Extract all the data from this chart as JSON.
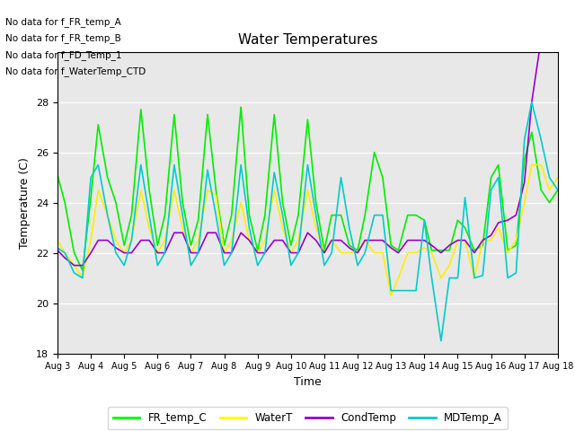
{
  "title": "Water Temperatures",
  "xlabel": "Time",
  "ylabel": "Temperature (C)",
  "ylim": [
    18,
    30
  ],
  "xlim_start": 0,
  "xlim_end": 15,
  "xtick_labels": [
    "Aug 3",
    "Aug 4",
    "Aug 5",
    "Aug 6",
    "Aug 7",
    "Aug 8",
    "Aug 9",
    "Aug 10",
    "Aug 11",
    "Aug 12",
    "Aug 13",
    "Aug 14",
    "Aug 15",
    "Aug 16",
    "Aug 17",
    "Aug 18"
  ],
  "ytick_values": [
    18,
    20,
    22,
    24,
    26,
    28
  ],
  "ytick_labels": [
    "18",
    "20",
    "22",
    "24",
    "26",
    "28"
  ],
  "bg_color": "#e8e8e8",
  "fig_bg_color": "#ffffff",
  "no_data_lines": [
    "No data for f_FR_temp_A",
    "No data for f_FR_temp_B",
    "No data for f_FD_Temp_1",
    "No data for f_WaterTemp_CTD"
  ],
  "legend_entries": [
    {
      "label": "FR_temp_C",
      "color": "#00ff00"
    },
    {
      "label": "WaterT",
      "color": "#ffff00"
    },
    {
      "label": "CondTemp",
      "color": "#9900cc"
    },
    {
      "label": "MDTemp_A",
      "color": "#00cccc"
    }
  ],
  "series": {
    "FR_temp_C": {
      "color": "#00ee00",
      "x": [
        0,
        0.22,
        0.5,
        0.75,
        1.0,
        1.22,
        1.5,
        1.75,
        2.0,
        2.22,
        2.5,
        2.75,
        3.0,
        3.22,
        3.5,
        3.75,
        4.0,
        4.22,
        4.5,
        4.75,
        5.0,
        5.22,
        5.5,
        5.75,
        6.0,
        6.22,
        6.5,
        6.75,
        7.0,
        7.22,
        7.5,
        7.75,
        8.0,
        8.22,
        8.5,
        8.75,
        9.0,
        9.22,
        9.5,
        9.75,
        10.0,
        10.22,
        10.5,
        10.75,
        11.0,
        11.22,
        11.5,
        11.75,
        12.0,
        12.22,
        12.5,
        12.75,
        13.0,
        13.22,
        13.5,
        13.75,
        14.0,
        14.22,
        14.5,
        14.75,
        15.0
      ],
      "y": [
        25.1,
        24.0,
        22.0,
        21.3,
        24.2,
        27.1,
        25.0,
        24.0,
        22.3,
        23.5,
        27.7,
        24.5,
        22.3,
        23.5,
        27.5,
        24.0,
        22.3,
        23.3,
        27.5,
        24.5,
        22.3,
        23.5,
        27.8,
        23.5,
        22.1,
        23.5,
        27.5,
        24.0,
        22.3,
        23.5,
        27.3,
        24.0,
        22.1,
        23.5,
        23.5,
        22.3,
        22.1,
        23.5,
        26.0,
        25.0,
        22.3,
        22.1,
        23.5,
        23.5,
        23.3,
        22.1,
        22.1,
        22.1,
        23.3,
        23.0,
        22.1,
        22.3,
        25.0,
        25.5,
        22.1,
        22.3,
        25.7,
        26.8,
        24.5,
        24.0,
        24.5
      ]
    },
    "WaterT": {
      "color": "#ffee00",
      "x": [
        0,
        0.22,
        0.5,
        0.75,
        1.0,
        1.22,
        1.5,
        1.75,
        2.0,
        2.22,
        2.5,
        2.75,
        3.0,
        3.22,
        3.5,
        3.75,
        4.0,
        4.22,
        4.5,
        4.75,
        5.0,
        5.22,
        5.5,
        5.75,
        6.0,
        6.22,
        6.5,
        6.75,
        7.0,
        7.22,
        7.5,
        7.75,
        8.0,
        8.22,
        8.5,
        8.75,
        9.0,
        9.22,
        9.5,
        9.75,
        10.0,
        10.22,
        10.5,
        10.75,
        11.0,
        11.22,
        11.5,
        11.75,
        12.0,
        12.22,
        12.5,
        12.75,
        13.0,
        13.22,
        13.5,
        13.75,
        14.0,
        14.22,
        14.5,
        14.75,
        15.0
      ],
      "y": [
        22.5,
        22.0,
        21.5,
        21.0,
        22.5,
        24.5,
        23.5,
        22.5,
        22.0,
        22.5,
        24.5,
        23.0,
        22.0,
        22.5,
        24.5,
        23.0,
        22.0,
        22.5,
        24.5,
        24.3,
        22.0,
        22.5,
        24.0,
        22.5,
        22.0,
        22.5,
        24.5,
        23.0,
        22.0,
        22.5,
        24.5,
        23.0,
        22.0,
        22.5,
        22.0,
        22.0,
        22.0,
        22.5,
        22.0,
        22.0,
        20.3,
        21.0,
        22.0,
        22.0,
        22.2,
        22.0,
        21.0,
        21.5,
        22.5,
        22.5,
        21.0,
        22.5,
        22.5,
        23.0,
        22.0,
        22.5,
        24.0,
        25.5,
        25.5,
        24.5,
        25.0
      ]
    },
    "CondTemp": {
      "color": "#9900cc",
      "x": [
        0,
        0.22,
        0.5,
        0.75,
        1.0,
        1.22,
        1.5,
        1.75,
        2.0,
        2.22,
        2.5,
        2.75,
        3.0,
        3.22,
        3.5,
        3.75,
        4.0,
        4.22,
        4.5,
        4.75,
        5.0,
        5.22,
        5.5,
        5.75,
        6.0,
        6.22,
        6.5,
        6.75,
        7.0,
        7.22,
        7.5,
        7.75,
        8.0,
        8.22,
        8.5,
        8.75,
        9.0,
        9.22,
        9.5,
        9.75,
        10.0,
        10.22,
        10.5,
        10.75,
        11.0,
        11.22,
        11.5,
        11.75,
        12.0,
        12.22,
        12.5,
        12.75,
        13.0,
        13.22,
        13.5,
        13.75,
        14.0,
        14.22,
        14.5,
        14.75,
        15.0
      ],
      "y": [
        22.1,
        21.8,
        21.5,
        21.5,
        22.0,
        22.5,
        22.5,
        22.2,
        22.0,
        22.0,
        22.5,
        22.5,
        22.0,
        22.0,
        22.8,
        22.8,
        22.0,
        22.0,
        22.8,
        22.8,
        22.0,
        22.0,
        22.8,
        22.5,
        22.0,
        22.0,
        22.5,
        22.5,
        22.0,
        22.0,
        22.8,
        22.5,
        22.0,
        22.5,
        22.5,
        22.2,
        22.0,
        22.5,
        22.5,
        22.5,
        22.2,
        22.0,
        22.5,
        22.5,
        22.5,
        22.3,
        22.0,
        22.3,
        22.5,
        22.5,
        22.0,
        22.5,
        22.7,
        23.2,
        23.3,
        23.5,
        24.8,
        28.0,
        30.5,
        30.5,
        30.3
      ]
    },
    "MDTemp_A": {
      "color": "#00cccc",
      "x": [
        0,
        0.22,
        0.5,
        0.75,
        1.0,
        1.22,
        1.5,
        1.75,
        2.0,
        2.22,
        2.5,
        2.75,
        3.0,
        3.22,
        3.5,
        3.75,
        4.0,
        4.22,
        4.5,
        4.75,
        5.0,
        5.22,
        5.5,
        5.75,
        6.0,
        6.22,
        6.5,
        6.75,
        7.0,
        7.22,
        7.5,
        7.75,
        8.0,
        8.22,
        8.5,
        8.75,
        9.0,
        9.22,
        9.5,
        9.75,
        10.0,
        10.22,
        10.5,
        10.75,
        11.0,
        11.22,
        11.5,
        11.75,
        12.0,
        12.22,
        12.5,
        12.75,
        13.0,
        13.22,
        13.5,
        13.75,
        14.0,
        14.22,
        14.5,
        14.75,
        15.0
      ],
      "y": [
        22.2,
        22.0,
        21.2,
        21.0,
        25.0,
        25.5,
        23.5,
        22.0,
        21.5,
        22.5,
        25.5,
        23.5,
        21.5,
        22.0,
        25.5,
        23.5,
        21.5,
        22.0,
        25.3,
        23.5,
        21.5,
        22.0,
        25.5,
        23.0,
        21.5,
        22.0,
        25.2,
        23.5,
        21.5,
        22.0,
        25.5,
        23.5,
        21.5,
        22.0,
        25.0,
        23.0,
        21.5,
        22.0,
        23.5,
        23.5,
        20.5,
        20.5,
        20.5,
        20.5,
        23.3,
        21.0,
        18.5,
        21.0,
        21.0,
        24.2,
        21.0,
        21.1,
        24.5,
        25.0,
        21.0,
        21.2,
        26.5,
        28.0,
        26.5,
        25.0,
        24.5
      ]
    }
  }
}
